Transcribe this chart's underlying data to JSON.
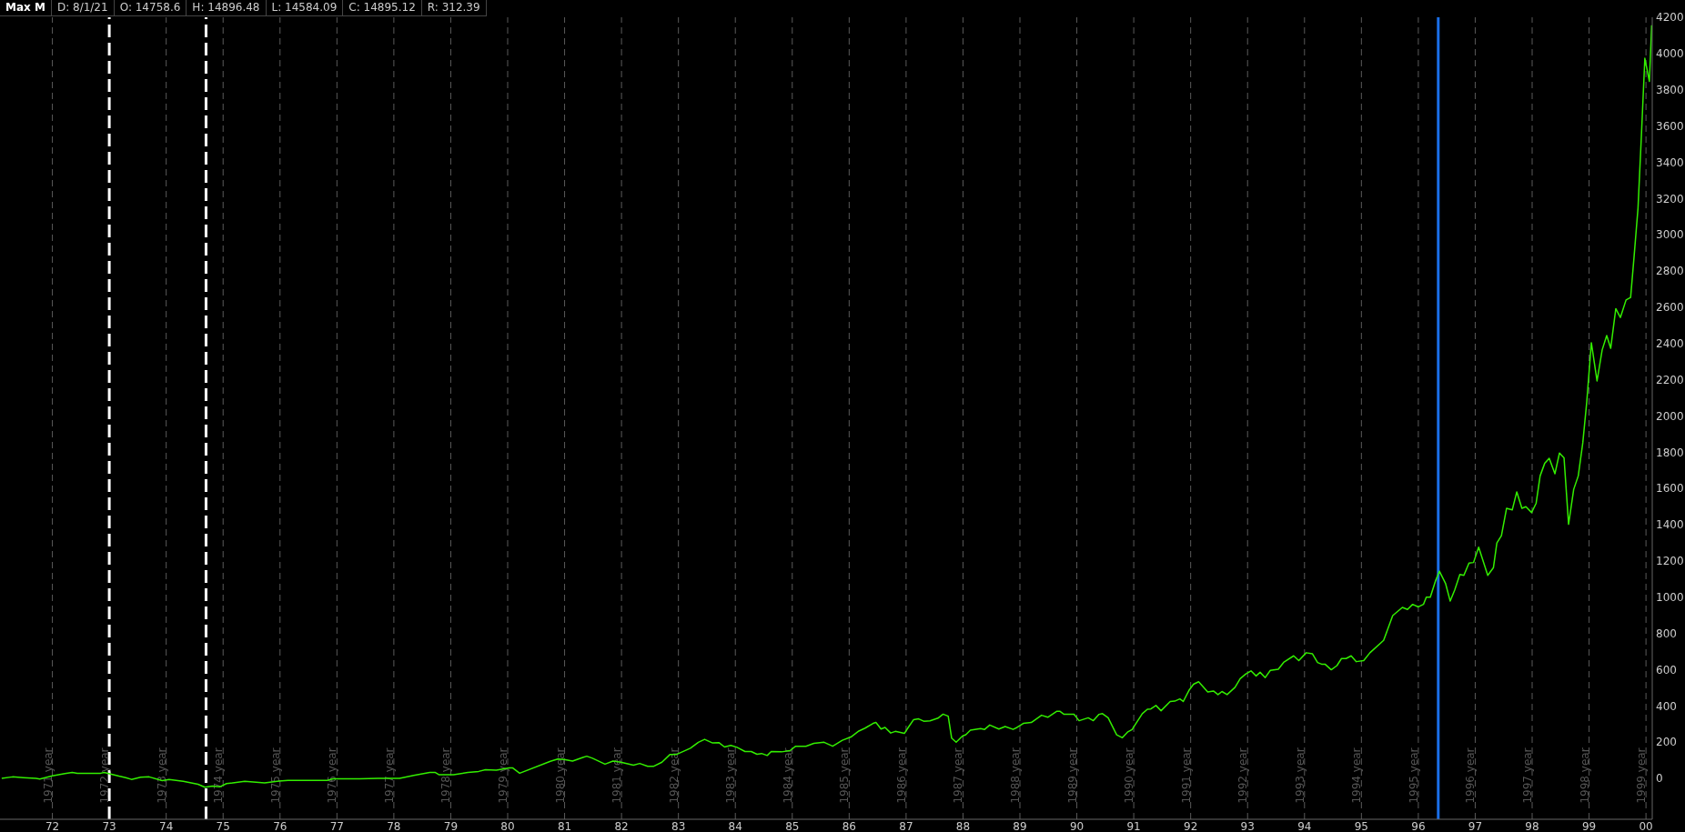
{
  "chart_data": {
    "type": "line",
    "annotations": [
      "Max M",
      "D: 8/1/21",
      "O: 14758.6",
      "H: 14896.48",
      "L: 14584.09",
      "C: 14895.12",
      "R: 312.39"
    ],
    "x": [
      1971.11,
      1971.3,
      1971.49,
      1971.71,
      1971.78,
      1972.0,
      1972.22,
      1972.35,
      1972.44,
      1972.85,
      1972.91,
      1973.04,
      1973.17,
      1973.29,
      1973.39,
      1973.55,
      1973.7,
      1973.93,
      1974.05,
      1974.3,
      1974.56,
      1974.68,
      1974.81,
      1974.94,
      1975.06,
      1975.38,
      1975.73,
      1975.98,
      1976.14,
      1976.83,
      1976.93,
      1977.4,
      1977.72,
      1977.91,
      1978.1,
      1978.35,
      1978.63,
      1978.73,
      1978.79,
      1979.05,
      1979.3,
      1979.49,
      1979.61,
      1979.8,
      1980.03,
      1980.09,
      1980.21,
      1980.75,
      1980.88,
      1980.99,
      1981.14,
      1981.32,
      1981.39,
      1981.49,
      1981.71,
      1981.85,
      1981.99,
      1982.21,
      1982.32,
      1982.46,
      1982.56,
      1982.71,
      1982.85,
      1982.96,
      1983.21,
      1983.35,
      1983.46,
      1983.6,
      1983.71,
      1983.81,
      1983.92,
      1984.03,
      1984.17,
      1984.28,
      1984.38,
      1984.46,
      1984.56,
      1984.63,
      1984.81,
      1984.96,
      1985.06,
      1985.24,
      1985.38,
      1985.56,
      1985.71,
      1985.88,
      1986.03,
      1986.17,
      1986.28,
      1986.42,
      1986.47,
      1986.56,
      1986.63,
      1986.73,
      1986.81,
      1986.97,
      1987.03,
      1987.13,
      1987.22,
      1987.31,
      1987.42,
      1987.56,
      1987.65,
      1987.74,
      1987.8,
      1987.88,
      1987.99,
      1988.05,
      1988.13,
      1988.31,
      1988.38,
      1988.47,
      1988.63,
      1988.74,
      1988.88,
      1988.95,
      1989.06,
      1989.2,
      1989.38,
      1989.49,
      1989.65,
      1989.7,
      1989.77,
      1989.95,
      1990.04,
      1990.2,
      1990.29,
      1990.39,
      1990.45,
      1990.55,
      1990.7,
      1990.8,
      1990.89,
      1990.97,
      1991.15,
      1991.24,
      1991.3,
      1991.39,
      1991.48,
      1991.64,
      1991.72,
      1991.81,
      1991.87,
      1991.97,
      1992.05,
      1992.14,
      1992.3,
      1992.4,
      1992.48,
      1992.55,
      1992.64,
      1992.78,
      1992.87,
      1992.97,
      1993.06,
      1993.15,
      1993.22,
      1993.31,
      1993.4,
      1993.54,
      1993.64,
      1993.81,
      1993.9,
      1994.03,
      1994.14,
      1994.23,
      1994.3,
      1994.36,
      1994.47,
      1994.57,
      1994.65,
      1994.73,
      1994.82,
      1994.91,
      1995.04,
      1995.15,
      1995.39,
      1995.55,
      1995.72,
      1995.81,
      1995.9,
      1996.0,
      1996.09,
      1996.14,
      1996.21,
      1996.3,
      1996.37,
      1996.48,
      1996.56,
      1996.64,
      1996.73,
      1996.8,
      1996.89,
      1996.97,
      1997.06,
      1997.22,
      1997.32,
      1997.38,
      1997.46,
      1997.55,
      1997.65,
      1997.73,
      1997.82,
      1997.89,
      1997.99,
      1998.07,
      1998.14,
      1998.22,
      1998.3,
      1998.4,
      1998.48,
      1998.56,
      1998.64,
      1998.73,
      1998.81,
      1998.89,
      1998.96,
      1999.04,
      1999.14,
      1999.23,
      1999.31,
      1999.38,
      1999.47,
      1999.55,
      1999.65,
      1999.73,
      1999.79,
      1999.86,
      1999.92,
      1999.98,
      2000.06,
      2000.1
    ],
    "series": [
      {
        "color": "#33ee00",
        "values": [
          0,
          8,
          4,
          0,
          -4,
          14,
          26,
          32,
          28,
          28,
          32,
          22,
          12,
          4,
          -6,
          6,
          8,
          -13,
          -7,
          -17,
          -33,
          -49,
          -43,
          -47,
          -29,
          -17,
          -25,
          -15,
          -11,
          -11,
          -3,
          -3,
          0,
          0,
          0,
          16,
          32,
          32,
          20,
          20,
          32,
          38,
          47,
          45,
          57,
          57,
          28,
          94,
          106,
          104,
          95,
          115,
          122,
          111,
          78,
          95,
          89,
          73,
          82,
          66,
          66,
          89,
          131,
          131,
          166,
          199,
          215,
          195,
          197,
          173,
          182,
          171,
          148,
          148,
          133,
          137,
          126,
          148,
          146,
          153,
          177,
          177,
          193,
          199,
          177,
          210,
          228,
          261,
          277,
          303,
          308,
          272,
          281,
          250,
          259,
          248,
          277,
          323,
          328,
          315,
          317,
          332,
          354,
          343,
          222,
          199,
          233,
          241,
          266,
          274,
          270,
          294,
          272,
          286,
          270,
          281,
          303,
          308,
          348,
          337,
          370,
          370,
          354,
          354,
          318,
          334,
          318,
          353,
          357,
          334,
          240,
          224,
          255,
          269,
          357,
          381,
          383,
          402,
          373,
          424,
          426,
          438,
          424,
          485,
          519,
          533,
          476,
          482,
          462,
          479,
          462,
          502,
          550,
          576,
          593,
          565,
          585,
          556,
          596,
          602,
          642,
          676,
          650,
          693,
          687,
          639,
          630,
          630,
          599,
          622,
          661,
          661,
          676,
          644,
          650,
          693,
          761,
          898,
          943,
          932,
          960,
          946,
          960,
          1000,
          1000,
          1088,
          1143,
          1074,
          978,
          1040,
          1125,
          1120,
          1188,
          1191,
          1276,
          1120,
          1163,
          1299,
          1339,
          1490,
          1481,
          1581,
          1490,
          1499,
          1467,
          1518,
          1669,
          1738,
          1766,
          1681,
          1795,
          1769,
          1402,
          1595,
          1669,
          1852,
          2079,
          2404,
          2193,
          2364,
          2444,
          2373,
          2592,
          2543,
          2640,
          2654,
          2876,
          3147,
          3550,
          3974,
          3846,
          4156
        ]
      }
    ],
    "xlim": [
      1971.08,
      2000.11
    ],
    "xticks": [
      {
        "value": 1972,
        "label": "72"
      },
      {
        "value": 1973,
        "label": "73"
      },
      {
        "value": 1974,
        "label": "74"
      },
      {
        "value": 1975,
        "label": "75"
      },
      {
        "value": 1976,
        "label": "76"
      },
      {
        "value": 1977,
        "label": "77"
      },
      {
        "value": 1978,
        "label": "78"
      },
      {
        "value": 1979,
        "label": "79"
      },
      {
        "value": 1980,
        "label": "80"
      },
      {
        "value": 1981,
        "label": "81"
      },
      {
        "value": 1982,
        "label": "82"
      },
      {
        "value": 1983,
        "label": "83"
      },
      {
        "value": 1984,
        "label": "84"
      },
      {
        "value": 1985,
        "label": "85"
      },
      {
        "value": 1986,
        "label": "86"
      },
      {
        "value": 1987,
        "label": "87"
      },
      {
        "value": 1988,
        "label": "88"
      },
      {
        "value": 1989,
        "label": "89"
      },
      {
        "value": 1990,
        "label": "90"
      },
      {
        "value": 1991,
        "label": "91"
      },
      {
        "value": 1992,
        "label": "92"
      },
      {
        "value": 1993,
        "label": "93"
      },
      {
        "value": 1994,
        "label": "94"
      },
      {
        "value": 1995,
        "label": "95"
      },
      {
        "value": 1996,
        "label": "96"
      },
      {
        "value": 1997,
        "label": "97"
      },
      {
        "value": 1998,
        "label": "98"
      },
      {
        "value": 1999,
        "label": "99"
      },
      {
        "value": 2000,
        "label": "00"
      }
    ],
    "ylim": [
      -226,
      4200
    ],
    "yticks": [
      0,
      200,
      400,
      600,
      800,
      1000,
      1200,
      1400,
      1600,
      1800,
      2000,
      2200,
      2400,
      2600,
      2800,
      3000,
      3200,
      3400,
      3600,
      3800,
      4000,
      4200
    ],
    "ref_lines": [
      {
        "axis": "x",
        "value": 1972,
        "label": "1971 year",
        "color": "#5a5a5a",
        "line_style": "dashed"
      },
      {
        "axis": "x",
        "value": 1973,
        "label": "1972 year",
        "color": "#ffffff",
        "line_style": "dashed"
      },
      {
        "axis": "x",
        "value": 1974,
        "label": "1973 year",
        "color": "#5a5a5a",
        "line_style": "dashed"
      },
      {
        "axis": "x",
        "value": 1975,
        "label": "1974 year",
        "color": "#5a5a5a",
        "line_style": "dashed"
      },
      {
        "axis": "x",
        "value": 1976,
        "label": "1975 year",
        "color": "#5a5a5a",
        "line_style": "dashed"
      },
      {
        "axis": "x",
        "value": 1977,
        "label": "1976 year",
        "color": "#5a5a5a",
        "line_style": "dashed"
      },
      {
        "axis": "x",
        "value": 1978,
        "label": "1977 year",
        "color": "#5a5a5a",
        "line_style": "dashed"
      },
      {
        "axis": "x",
        "value": 1979,
        "label": "1978 year",
        "color": "#5a5a5a",
        "line_style": "dashed"
      },
      {
        "axis": "x",
        "value": 1980,
        "label": "1979 year",
        "color": "#5a5a5a",
        "line_style": "dashed"
      },
      {
        "axis": "x",
        "value": 1981,
        "label": "1980 year",
        "color": "#5a5a5a",
        "line_style": "dashed"
      },
      {
        "axis": "x",
        "value": 1982,
        "label": "1981 year",
        "color": "#5a5a5a",
        "line_style": "dashed"
      },
      {
        "axis": "x",
        "value": 1983,
        "label": "1982 year",
        "color": "#5a5a5a",
        "line_style": "dashed"
      },
      {
        "axis": "x",
        "value": 1984,
        "label": "1983 year",
        "color": "#5a5a5a",
        "line_style": "dashed"
      },
      {
        "axis": "x",
        "value": 1985,
        "label": "1984 year",
        "color": "#5a5a5a",
        "line_style": "dashed"
      },
      {
        "axis": "x",
        "value": 1986,
        "label": "1985 year",
        "color": "#5a5a5a",
        "line_style": "dashed"
      },
      {
        "axis": "x",
        "value": 1987,
        "label": "1986 year",
        "color": "#5a5a5a",
        "line_style": "dashed"
      },
      {
        "axis": "x",
        "value": 1988,
        "label": "1987 year",
        "color": "#5a5a5a",
        "line_style": "dashed"
      },
      {
        "axis": "x",
        "value": 1989,
        "label": "1988 year",
        "color": "#5a5a5a",
        "line_style": "dashed"
      },
      {
        "axis": "x",
        "value": 1990,
        "label": "1989 year",
        "color": "#5a5a5a",
        "line_style": "dashed"
      },
      {
        "axis": "x",
        "value": 1991,
        "label": "1990 year",
        "color": "#5a5a5a",
        "line_style": "dashed"
      },
      {
        "axis": "x",
        "value": 1992,
        "label": "1991 year",
        "color": "#5a5a5a",
        "line_style": "dashed"
      },
      {
        "axis": "x",
        "value": 1993,
        "label": "1992 year",
        "color": "#5a5a5a",
        "line_style": "dashed"
      },
      {
        "axis": "x",
        "value": 1994,
        "label": "1993 year",
        "color": "#5a5a5a",
        "line_style": "dashed"
      },
      {
        "axis": "x",
        "value": 1995,
        "label": "1994 year",
        "color": "#5a5a5a",
        "line_style": "dashed"
      },
      {
        "axis": "x",
        "value": 1996,
        "label": "1995 year",
        "color": "#5a5a5a",
        "line_style": "dashed"
      },
      {
        "axis": "x",
        "value": 1997,
        "label": "1996 year",
        "color": "#5a5a5a",
        "line_style": "dashed"
      },
      {
        "axis": "x",
        "value": 1998,
        "label": "1997 year",
        "color": "#5a5a5a",
        "line_style": "dashed"
      },
      {
        "axis": "x",
        "value": 1999,
        "label": "1998 year",
        "color": "#5a5a5a",
        "line_style": "dashed"
      },
      {
        "axis": "x",
        "value": 2000,
        "label": "1999 year",
        "color": "#5a5a5a",
        "line_style": "dashed"
      },
      {
        "axis": "x",
        "value": 1974.7,
        "color": "#ffffff",
        "line_style": "dashed"
      },
      {
        "axis": "x",
        "value": 1996.35,
        "color": "#1a6fe8",
        "line_style": "solid"
      }
    ]
  }
}
